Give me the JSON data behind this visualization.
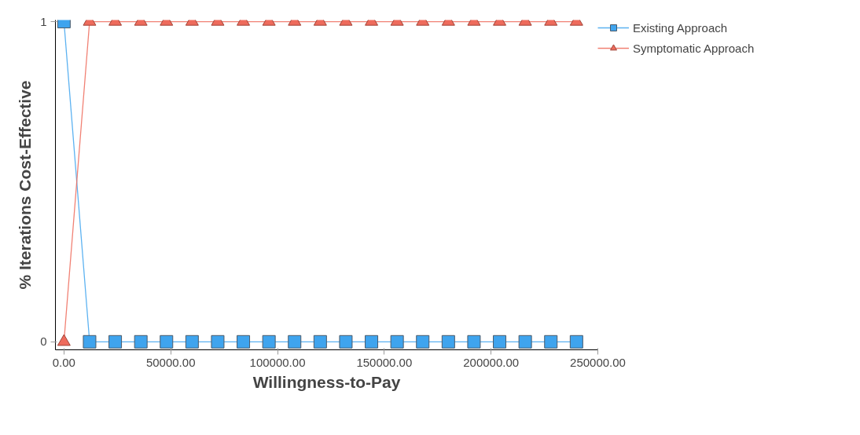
{
  "chart_data": {
    "type": "line",
    "xlabel": "Willingness-to-Pay",
    "ylabel": "% Iterations Cost-Effective",
    "x": [
      0,
      12000,
      24000,
      36000,
      48000,
      60000,
      72000,
      84000,
      96000,
      108000,
      120000,
      132000,
      144000,
      156000,
      168000,
      180000,
      192000,
      204000,
      216000,
      228000,
      240000
    ],
    "series": [
      {
        "name": "Existing Approach",
        "color": "#3fa4ee",
        "marker": "square",
        "values": [
          1,
          0,
          0,
          0,
          0,
          0,
          0,
          0,
          0,
          0,
          0,
          0,
          0,
          0,
          0,
          0,
          0,
          0,
          0,
          0,
          0
        ]
      },
      {
        "name": "Symptomatic Approach",
        "color": "#ee6b5c",
        "marker": "triangle",
        "values": [
          0,
          1,
          1,
          1,
          1,
          1,
          1,
          1,
          1,
          1,
          1,
          1,
          1,
          1,
          1,
          1,
          1,
          1,
          1,
          1,
          1
        ]
      }
    ],
    "xlim": [
      -4000,
      250000
    ],
    "ylim": [
      -0.025,
      1.005
    ],
    "xticks": [
      {
        "value": 0,
        "label": "0.00"
      },
      {
        "value": 50000,
        "label": "50000.00"
      },
      {
        "value": 100000,
        "label": "100000.00"
      },
      {
        "value": 150000,
        "label": "150000.00"
      },
      {
        "value": 200000,
        "label": "200000.00"
      },
      {
        "value": 250000,
        "label": "250000.00"
      }
    ],
    "yticks": [
      0,
      1
    ],
    "grid": false,
    "legend": "top right",
    "line_style": "solid"
  }
}
